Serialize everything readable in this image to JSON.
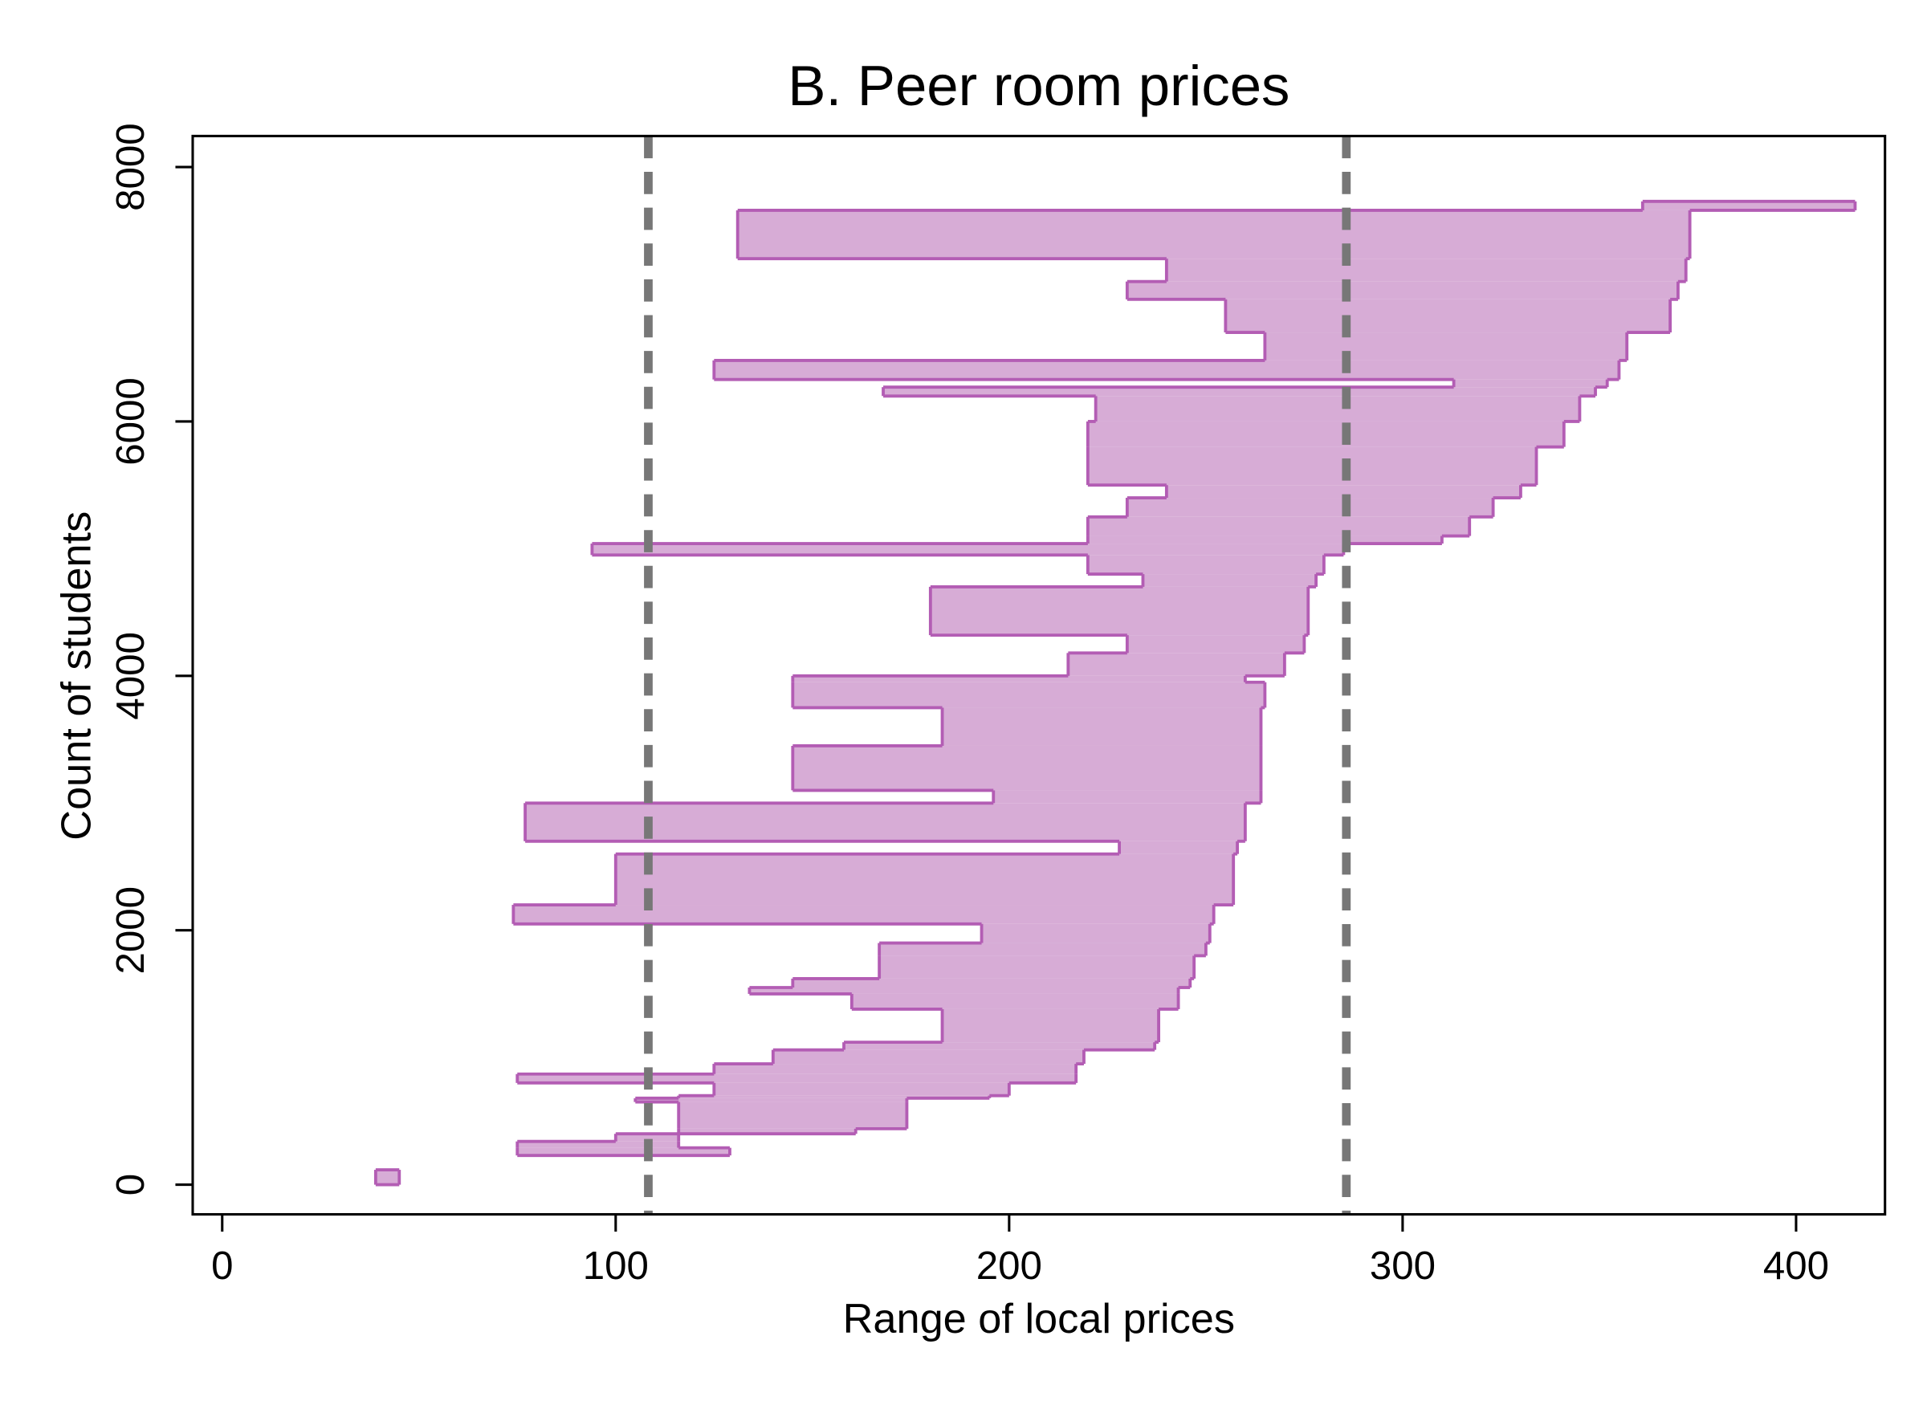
{
  "chart_data": {
    "type": "rarea_h",
    "title": "B. Peer room prices",
    "xlabel": "Range of local prices",
    "ylabel": "Count of students",
    "xlim": [
      -7.5,
      422.6
    ],
    "xticks": [
      0,
      100,
      200,
      300,
      400
    ],
    "ylim": [
      -233,
      8244
    ],
    "yticks": [
      0,
      2000,
      4000,
      6000,
      8000
    ],
    "fill_color": "#d7acd6",
    "edge_color": "#b35db4",
    "vlines": [
      108.3,
      285.7
    ],
    "vline_color": "#777777",
    "count_from": [
      0,
      230,
      290,
      340,
      400,
      440,
      650,
      680,
      700,
      800,
      870,
      950,
      1060,
      1120,
      1380,
      1500,
      1550,
      1620,
      1800,
      1900,
      2050,
      2200,
      2600,
      2700,
      3000,
      3100,
      3450,
      3750,
      3950,
      4000,
      4180,
      4320,
      4700,
      4800,
      4950,
      5040,
      5100,
      5250,
      5400,
      5500,
      5800,
      6000,
      6200,
      6270,
      6330,
      6480,
      6700,
      6960,
      7100,
      7280,
      7660
    ],
    "count_to": [
      117,
      290,
      340,
      400,
      440,
      650,
      680,
      700,
      800,
      870,
      950,
      1060,
      1120,
      1380,
      1500,
      1550,
      1620,
      1800,
      1900,
      2050,
      2200,
      2600,
      2700,
      3000,
      3100,
      3450,
      3750,
      3950,
      4000,
      4180,
      4320,
      4700,
      4800,
      4950,
      5040,
      5100,
      5250,
      5400,
      5500,
      5800,
      6000,
      6200,
      6270,
      6330,
      6480,
      6700,
      6960,
      7100,
      7280,
      7660,
      7730
    ],
    "low": [
      39,
      75,
      75,
      100,
      116,
      116,
      105,
      116,
      125,
      75,
      125,
      140,
      158,
      183,
      160,
      134,
      145,
      167,
      167,
      193,
      74,
      100,
      228,
      77,
      196,
      145,
      183,
      145,
      145,
      215,
      230,
      180,
      234,
      220,
      94,
      220,
      220,
      230,
      240,
      220,
      220,
      222,
      168,
      313,
      125,
      265,
      255,
      230,
      240,
      131,
      361
    ],
    "high": [
      45,
      129,
      116,
      116,
      161,
      174,
      174,
      195,
      200,
      217,
      217,
      219,
      237,
      238,
      243,
      243,
      246,
      247,
      250,
      251,
      252,
      257,
      258,
      260,
      264,
      264,
      264,
      265,
      260,
      270,
      275,
      276,
      278,
      280,
      285,
      310,
      317,
      323,
      330,
      334,
      341,
      345,
      349,
      352,
      355,
      357,
      368,
      370,
      372,
      373,
      415
    ]
  }
}
